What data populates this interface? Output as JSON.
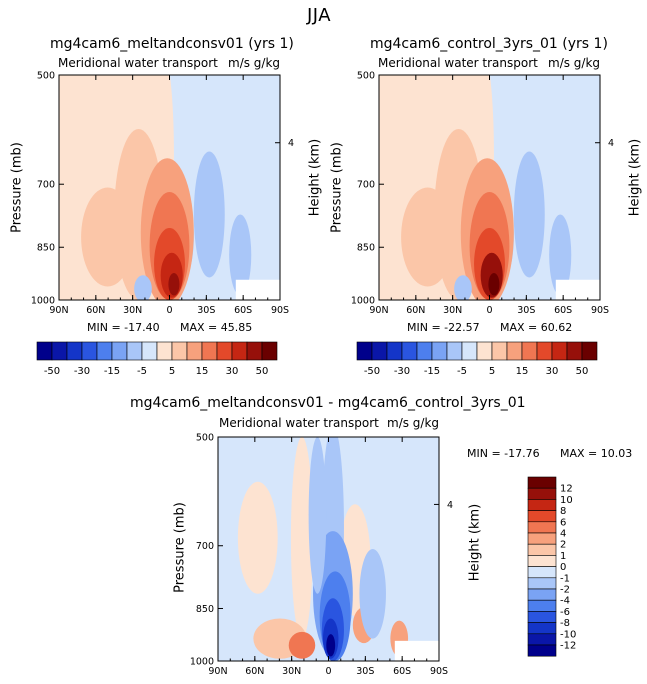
{
  "page": {
    "season": "JJA"
  },
  "colors": {
    "scale": [
      "#00008b",
      "#0a16a8",
      "#1435c8",
      "#2a55e0",
      "#4d7fee",
      "#7aa3f4",
      "#a9c6f8",
      "#d6e6fb",
      "#fde3d1",
      "#fbc6a8",
      "#f7a17d",
      "#f07652",
      "#e3492a",
      "#c52613",
      "#96100a",
      "#6a0000"
    ]
  },
  "chart_data": [
    {
      "type": "heatmap",
      "title": "mg4cam6_meltandconsv01 (yrs 1)",
      "subtitle_left": "Meridional water transport",
      "subtitle_right": "m/s g/kg",
      "ylabel": "Pressure (mb)",
      "ylabel_right": "Height (km)",
      "x_ticks": [
        "90N",
        "60N",
        "30N",
        "0",
        "30S",
        "60S",
        "90S"
      ],
      "y_ticks": [
        "500",
        "700",
        "850",
        "1000"
      ],
      "y_right_ticks": [
        "4"
      ],
      "min_label": "MIN = -17.40",
      "max_label": "MAX =  45.85",
      "min": -17.4,
      "max": 45.85
    },
    {
      "type": "heatmap",
      "title": "mg4cam6_control_3yrs_01 (yrs 1)",
      "subtitle_left": "Meridional water transport",
      "subtitle_right": "m/s g/kg",
      "ylabel": "Pressure (mb)",
      "ylabel_right": "Height (km)",
      "x_ticks": [
        "90N",
        "60N",
        "30N",
        "0",
        "30S",
        "60S",
        "90S"
      ],
      "y_ticks": [
        "500",
        "700",
        "850",
        "1000"
      ],
      "y_right_ticks": [
        "4"
      ],
      "min_label": "MIN = -22.57",
      "max_label": "MAX =  60.62",
      "min": -22.57,
      "max": 60.62
    },
    {
      "type": "heatmap",
      "title": "mg4cam6_meltandconsv01 - mg4cam6_control_3yrs_01",
      "subtitle_left": "Meridional water transport",
      "subtitle_right": "m/s g/kg",
      "ylabel": "Pressure (mb)",
      "ylabel_right": "Height (km)",
      "x_ticks": [
        "90N",
        "60N",
        "30N",
        "0",
        "30S",
        "60S",
        "90S"
      ],
      "y_ticks": [
        "500",
        "700",
        "850",
        "1000"
      ],
      "y_right_ticks": [
        "4"
      ],
      "min_label": "MIN = -17.76",
      "max_label": "MAX =   10.03",
      "min": -17.76,
      "max": 10.03
    }
  ],
  "colorbar_top": {
    "labels": [
      "-50",
      "-30",
      "-15",
      "-5",
      "5",
      "15",
      "30",
      "50"
    ],
    "levels": [
      -50,
      -40,
      -30,
      -20,
      -15,
      -10,
      -5,
      0,
      5,
      10,
      15,
      20,
      30,
      40,
      50
    ]
  },
  "colorbar_diff": {
    "labels": [
      "12",
      "10",
      "8",
      "6",
      "4",
      "2",
      "1",
      "0",
      "-1",
      "-2",
      "-4",
      "-6",
      "-8",
      "-10",
      "-12"
    ]
  }
}
